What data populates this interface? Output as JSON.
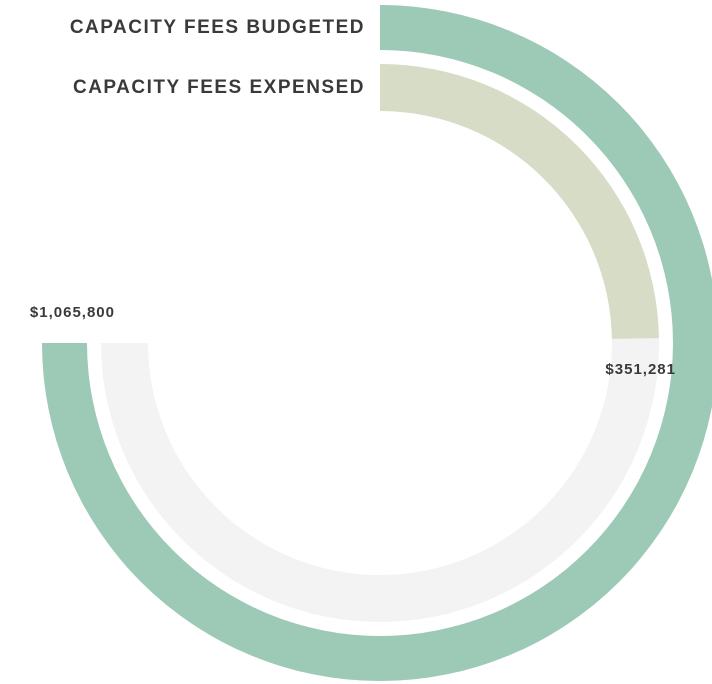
{
  "chart_data": {
    "type": "radial_bar",
    "series": [
      {
        "name": "CAPACITY FEES BUDGETED",
        "color": "#9dc9b7",
        "values": [
          1065800
        ],
        "value_labels": [
          "$1,065,800"
        ]
      },
      {
        "name": "CAPACITY FEES EXPENSED",
        "color": "#d7dcc6",
        "values": [
          351281
        ],
        "value_labels": [
          "$351,281"
        ]
      }
    ]
  }
}
